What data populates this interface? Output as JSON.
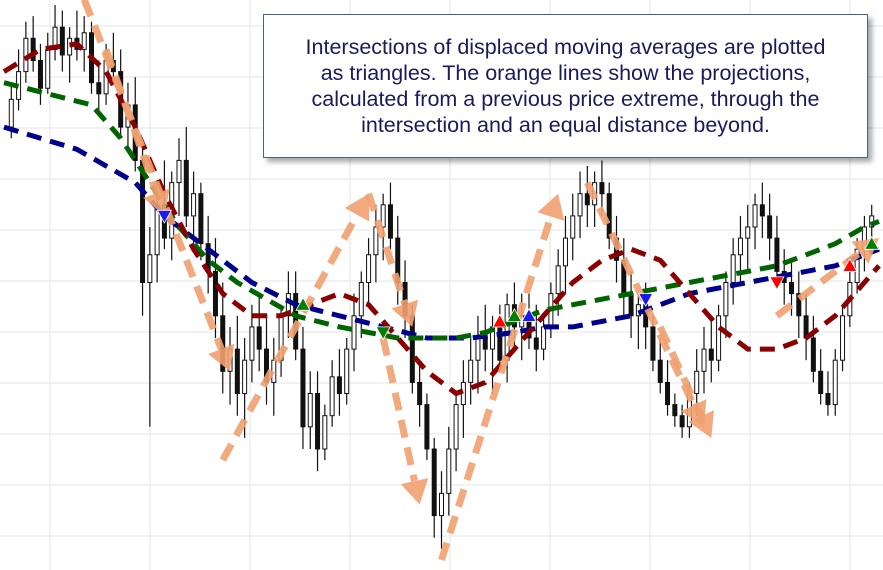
{
  "annotation": {
    "text": "Intersections of displaced moving averages are plotted\nas triangles. The orange lines show the projections,\ncalculated from a previous price extreme, through the\nintersection and an equal distance beyond."
  },
  "colors": {
    "background": "#ffffff",
    "grid": "#e6e6e6",
    "candle": "#111111",
    "ma_slow": "#00008b",
    "ma_medium": "#006400",
    "ma_fast": "#8b0000",
    "projection": "#f0a070",
    "triangle_up": "#ff0000",
    "triangle_down": "#1a1aee",
    "triangle_cross": "#008000"
  },
  "chart_data": {
    "type": "candlestick",
    "title": "",
    "xlabel": "",
    "ylabel": "",
    "grid": true,
    "legend": "none",
    "x_range": [
      0,
      120
    ],
    "y_range": [
      0,
      100
    ],
    "candles": [
      {
        "x": 1,
        "o": 78,
        "h": 86,
        "l": 76,
        "c": 83
      },
      {
        "x": 2,
        "o": 83,
        "h": 92,
        "l": 81,
        "c": 88
      },
      {
        "x": 3,
        "o": 88,
        "h": 97,
        "l": 86,
        "c": 94
      },
      {
        "x": 4,
        "o": 94,
        "h": 98,
        "l": 88,
        "c": 90
      },
      {
        "x": 5,
        "o": 90,
        "h": 93,
        "l": 82,
        "c": 85
      },
      {
        "x": 6,
        "o": 85,
        "h": 95,
        "l": 84,
        "c": 92
      },
      {
        "x": 7,
        "o": 92,
        "h": 100,
        "l": 90,
        "c": 96
      },
      {
        "x": 8,
        "o": 96,
        "h": 99,
        "l": 88,
        "c": 91
      },
      {
        "x": 9,
        "o": 91,
        "h": 96,
        "l": 86,
        "c": 94
      },
      {
        "x": 10,
        "o": 94,
        "h": 99,
        "l": 90,
        "c": 92
      },
      {
        "x": 11,
        "o": 92,
        "h": 98,
        "l": 88,
        "c": 95
      },
      {
        "x": 12,
        "o": 95,
        "h": 97,
        "l": 84,
        "c": 86
      },
      {
        "x": 13,
        "o": 86,
        "h": 90,
        "l": 80,
        "c": 84
      },
      {
        "x": 14,
        "o": 84,
        "h": 93,
        "l": 82,
        "c": 90
      },
      {
        "x": 15,
        "o": 90,
        "h": 95,
        "l": 86,
        "c": 88
      },
      {
        "x": 16,
        "o": 88,
        "h": 92,
        "l": 76,
        "c": 78
      },
      {
        "x": 17,
        "o": 78,
        "h": 86,
        "l": 74,
        "c": 82
      },
      {
        "x": 18,
        "o": 82,
        "h": 87,
        "l": 70,
        "c": 72
      },
      {
        "x": 19,
        "o": 72,
        "h": 76,
        "l": 44,
        "c": 50
      },
      {
        "x": 20,
        "o": 50,
        "h": 60,
        "l": 24,
        "c": 55
      },
      {
        "x": 21,
        "o": 55,
        "h": 68,
        "l": 50,
        "c": 64
      },
      {
        "x": 22,
        "o": 64,
        "h": 72,
        "l": 56,
        "c": 58
      },
      {
        "x": 23,
        "o": 58,
        "h": 70,
        "l": 54,
        "c": 68
      },
      {
        "x": 24,
        "o": 68,
        "h": 76,
        "l": 62,
        "c": 72
      },
      {
        "x": 25,
        "o": 72,
        "h": 78,
        "l": 60,
        "c": 62
      },
      {
        "x": 26,
        "o": 62,
        "h": 70,
        "l": 56,
        "c": 66
      },
      {
        "x": 27,
        "o": 66,
        "h": 68,
        "l": 54,
        "c": 57
      },
      {
        "x": 28,
        "o": 57,
        "h": 62,
        "l": 48,
        "c": 52
      },
      {
        "x": 29,
        "o": 52,
        "h": 58,
        "l": 40,
        "c": 44
      },
      {
        "x": 30,
        "o": 44,
        "h": 50,
        "l": 30,
        "c": 34
      },
      {
        "x": 31,
        "o": 34,
        "h": 42,
        "l": 28,
        "c": 38
      },
      {
        "x": 32,
        "o": 38,
        "h": 44,
        "l": 26,
        "c": 30
      },
      {
        "x": 33,
        "o": 30,
        "h": 40,
        "l": 22,
        "c": 36
      },
      {
        "x": 34,
        "o": 36,
        "h": 46,
        "l": 32,
        "c": 42
      },
      {
        "x": 35,
        "o": 42,
        "h": 48,
        "l": 34,
        "c": 38
      },
      {
        "x": 36,
        "o": 38,
        "h": 44,
        "l": 28,
        "c": 32
      },
      {
        "x": 37,
        "o": 32,
        "h": 40,
        "l": 26,
        "c": 36
      },
      {
        "x": 38,
        "o": 36,
        "h": 46,
        "l": 33,
        "c": 44
      },
      {
        "x": 39,
        "o": 44,
        "h": 52,
        "l": 40,
        "c": 48
      },
      {
        "x": 40,
        "o": 48,
        "h": 52,
        "l": 36,
        "c": 38
      },
      {
        "x": 41,
        "o": 38,
        "h": 42,
        "l": 20,
        "c": 24
      },
      {
        "x": 42,
        "o": 24,
        "h": 34,
        "l": 20,
        "c": 30
      },
      {
        "x": 43,
        "o": 30,
        "h": 34,
        "l": 16,
        "c": 20
      },
      {
        "x": 44,
        "o": 20,
        "h": 28,
        "l": 18,
        "c": 26
      },
      {
        "x": 45,
        "o": 26,
        "h": 36,
        "l": 24,
        "c": 33
      },
      {
        "x": 46,
        "o": 33,
        "h": 38,
        "l": 26,
        "c": 30
      },
      {
        "x": 47,
        "o": 30,
        "h": 40,
        "l": 28,
        "c": 38
      },
      {
        "x": 48,
        "o": 38,
        "h": 48,
        "l": 34,
        "c": 44
      },
      {
        "x": 49,
        "o": 44,
        "h": 52,
        "l": 40,
        "c": 50
      },
      {
        "x": 50,
        "o": 50,
        "h": 58,
        "l": 46,
        "c": 55
      },
      {
        "x": 51,
        "o": 55,
        "h": 64,
        "l": 50,
        "c": 60
      },
      {
        "x": 52,
        "o": 60,
        "h": 66,
        "l": 54,
        "c": 64
      },
      {
        "x": 53,
        "o": 64,
        "h": 68,
        "l": 56,
        "c": 58
      },
      {
        "x": 54,
        "o": 58,
        "h": 62,
        "l": 46,
        "c": 50
      },
      {
        "x": 55,
        "o": 50,
        "h": 54,
        "l": 40,
        "c": 44
      },
      {
        "x": 56,
        "o": 44,
        "h": 46,
        "l": 30,
        "c": 32
      },
      {
        "x": 57,
        "o": 32,
        "h": 36,
        "l": 24,
        "c": 28
      },
      {
        "x": 58,
        "o": 28,
        "h": 30,
        "l": 18,
        "c": 20
      },
      {
        "x": 59,
        "o": 20,
        "h": 22,
        "l": 4,
        "c": 8
      },
      {
        "x": 60,
        "o": 8,
        "h": 16,
        "l": 2,
        "c": 12
      },
      {
        "x": 61,
        "o": 12,
        "h": 24,
        "l": 8,
        "c": 20
      },
      {
        "x": 62,
        "o": 20,
        "h": 30,
        "l": 16,
        "c": 28
      },
      {
        "x": 63,
        "o": 28,
        "h": 36,
        "l": 22,
        "c": 32
      },
      {
        "x": 64,
        "o": 32,
        "h": 40,
        "l": 28,
        "c": 36
      },
      {
        "x": 65,
        "o": 36,
        "h": 44,
        "l": 30,
        "c": 40
      },
      {
        "x": 66,
        "o": 40,
        "h": 46,
        "l": 34,
        "c": 38
      },
      {
        "x": 67,
        "o": 38,
        "h": 44,
        "l": 30,
        "c": 42
      },
      {
        "x": 68,
        "o": 42,
        "h": 46,
        "l": 34,
        "c": 36
      },
      {
        "x": 69,
        "o": 36,
        "h": 48,
        "l": 32,
        "c": 46
      },
      {
        "x": 70,
        "o": 46,
        "h": 50,
        "l": 38,
        "c": 42
      },
      {
        "x": 71,
        "o": 42,
        "h": 48,
        "l": 36,
        "c": 44
      },
      {
        "x": 72,
        "o": 44,
        "h": 48,
        "l": 38,
        "c": 40
      },
      {
        "x": 73,
        "o": 40,
        "h": 46,
        "l": 34,
        "c": 38
      },
      {
        "x": 74,
        "o": 38,
        "h": 44,
        "l": 36,
        "c": 42
      },
      {
        "x": 75,
        "o": 42,
        "h": 50,
        "l": 40,
        "c": 48
      },
      {
        "x": 76,
        "o": 48,
        "h": 56,
        "l": 44,
        "c": 53
      },
      {
        "x": 77,
        "o": 53,
        "h": 62,
        "l": 48,
        "c": 58
      },
      {
        "x": 78,
        "o": 58,
        "h": 66,
        "l": 54,
        "c": 62
      },
      {
        "x": 79,
        "o": 62,
        "h": 70,
        "l": 58,
        "c": 66
      },
      {
        "x": 80,
        "o": 66,
        "h": 71,
        "l": 60,
        "c": 64
      },
      {
        "x": 81,
        "o": 64,
        "h": 70,
        "l": 60,
        "c": 68
      },
      {
        "x": 82,
        "o": 68,
        "h": 72,
        "l": 62,
        "c": 66
      },
      {
        "x": 83,
        "o": 66,
        "h": 68,
        "l": 56,
        "c": 58
      },
      {
        "x": 84,
        "o": 58,
        "h": 62,
        "l": 50,
        "c": 54
      },
      {
        "x": 85,
        "o": 54,
        "h": 58,
        "l": 44,
        "c": 48
      },
      {
        "x": 86,
        "o": 48,
        "h": 52,
        "l": 40,
        "c": 44
      },
      {
        "x": 87,
        "o": 44,
        "h": 48,
        "l": 38,
        "c": 46
      },
      {
        "x": 88,
        "o": 46,
        "h": 50,
        "l": 38,
        "c": 42
      },
      {
        "x": 89,
        "o": 42,
        "h": 44,
        "l": 34,
        "c": 36
      },
      {
        "x": 90,
        "o": 36,
        "h": 40,
        "l": 30,
        "c": 32
      },
      {
        "x": 91,
        "o": 32,
        "h": 36,
        "l": 26,
        "c": 28
      },
      {
        "x": 92,
        "o": 28,
        "h": 30,
        "l": 24,
        "c": 26
      },
      {
        "x": 93,
        "o": 26,
        "h": 28,
        "l": 22,
        "c": 24
      },
      {
        "x": 94,
        "o": 24,
        "h": 32,
        "l": 22,
        "c": 30
      },
      {
        "x": 95,
        "o": 30,
        "h": 38,
        "l": 26,
        "c": 34
      },
      {
        "x": 96,
        "o": 34,
        "h": 42,
        "l": 30,
        "c": 38
      },
      {
        "x": 97,
        "o": 38,
        "h": 44,
        "l": 32,
        "c": 36
      },
      {
        "x": 98,
        "o": 36,
        "h": 46,
        "l": 34,
        "c": 44
      },
      {
        "x": 99,
        "o": 44,
        "h": 52,
        "l": 40,
        "c": 50
      },
      {
        "x": 100,
        "o": 50,
        "h": 58,
        "l": 46,
        "c": 55
      },
      {
        "x": 101,
        "o": 55,
        "h": 62,
        "l": 50,
        "c": 58
      },
      {
        "x": 102,
        "o": 58,
        "h": 64,
        "l": 52,
        "c": 60
      },
      {
        "x": 103,
        "o": 60,
        "h": 66,
        "l": 56,
        "c": 64
      },
      {
        "x": 104,
        "o": 64,
        "h": 68,
        "l": 58,
        "c": 62
      },
      {
        "x": 105,
        "o": 62,
        "h": 66,
        "l": 54,
        "c": 58
      },
      {
        "x": 106,
        "o": 58,
        "h": 62,
        "l": 50,
        "c": 52
      },
      {
        "x": 107,
        "o": 52,
        "h": 56,
        "l": 46,
        "c": 50
      },
      {
        "x": 108,
        "o": 50,
        "h": 54,
        "l": 44,
        "c": 48
      },
      {
        "x": 109,
        "o": 48,
        "h": 52,
        "l": 40,
        "c": 44
      },
      {
        "x": 110,
        "o": 44,
        "h": 48,
        "l": 36,
        "c": 40
      },
      {
        "x": 111,
        "o": 40,
        "h": 44,
        "l": 32,
        "c": 34
      },
      {
        "x": 112,
        "o": 34,
        "h": 38,
        "l": 28,
        "c": 30
      },
      {
        "x": 113,
        "o": 30,
        "h": 34,
        "l": 26,
        "c": 28
      },
      {
        "x": 114,
        "o": 28,
        "h": 38,
        "l": 26,
        "c": 36
      },
      {
        "x": 115,
        "o": 36,
        "h": 46,
        "l": 34,
        "c": 44
      },
      {
        "x": 116,
        "o": 44,
        "h": 52,
        "l": 42,
        "c": 50
      },
      {
        "x": 117,
        "o": 50,
        "h": 58,
        "l": 48,
        "c": 56
      },
      {
        "x": 118,
        "o": 56,
        "h": 62,
        "l": 52,
        "c": 60
      },
      {
        "x": 119,
        "o": 60,
        "h": 64,
        "l": 56,
        "c": 62
      }
    ],
    "series": [
      {
        "key": "slow",
        "color": "#00008b",
        "values": [
          [
            0,
            78
          ],
          [
            10,
            74
          ],
          [
            18,
            68
          ],
          [
            22,
            62
          ],
          [
            28,
            56
          ],
          [
            34,
            50
          ],
          [
            40,
            46
          ],
          [
            46,
            44
          ],
          [
            52,
            42
          ],
          [
            58,
            40
          ],
          [
            64,
            40
          ],
          [
            70,
            41
          ],
          [
            74,
            42
          ],
          [
            78,
            42
          ],
          [
            82,
            43
          ],
          [
            86,
            44
          ],
          [
            90,
            46
          ],
          [
            94,
            48
          ],
          [
            98,
            49
          ],
          [
            102,
            50
          ],
          [
            106,
            51
          ],
          [
            110,
            52
          ],
          [
            114,
            53
          ],
          [
            118,
            55
          ],
          [
            120,
            56
          ]
        ]
      },
      {
        "key": "medium",
        "color": "#006400",
        "values": [
          [
            0,
            86
          ],
          [
            6,
            84
          ],
          [
            12,
            82
          ],
          [
            16,
            76
          ],
          [
            20,
            68
          ],
          [
            24,
            60
          ],
          [
            28,
            54
          ],
          [
            32,
            50
          ],
          [
            36,
            47
          ],
          [
            40,
            44
          ],
          [
            46,
            42
          ],
          [
            50,
            41
          ],
          [
            54,
            40
          ],
          [
            58,
            40
          ],
          [
            62,
            40
          ],
          [
            66,
            41
          ],
          [
            70,
            43
          ],
          [
            74,
            45
          ],
          [
            78,
            46
          ],
          [
            82,
            47
          ],
          [
            86,
            48
          ],
          [
            90,
            49
          ],
          [
            94,
            50
          ],
          [
            98,
            51
          ],
          [
            102,
            52
          ],
          [
            106,
            53
          ],
          [
            110,
            55
          ],
          [
            114,
            57
          ],
          [
            118,
            60
          ],
          [
            120,
            61
          ]
        ]
      },
      {
        "key": "fast",
        "color": "#8b0000",
        "values": [
          [
            0,
            88
          ],
          [
            5,
            92
          ],
          [
            10,
            93
          ],
          [
            14,
            88
          ],
          [
            18,
            78
          ],
          [
            22,
            66
          ],
          [
            26,
            56
          ],
          [
            30,
            48
          ],
          [
            34,
            44
          ],
          [
            38,
            44
          ],
          [
            42,
            46
          ],
          [
            46,
            48
          ],
          [
            50,
            46
          ],
          [
            54,
            40
          ],
          [
            58,
            34
          ],
          [
            62,
            30
          ],
          [
            66,
            32
          ],
          [
            70,
            38
          ],
          [
            74,
            44
          ],
          [
            78,
            50
          ],
          [
            82,
            54
          ],
          [
            86,
            56
          ],
          [
            90,
            54
          ],
          [
            94,
            48
          ],
          [
            98,
            42
          ],
          [
            102,
            38
          ],
          [
            106,
            38
          ],
          [
            110,
            40
          ],
          [
            114,
            44
          ],
          [
            118,
            50
          ],
          [
            120,
            53
          ]
        ]
      }
    ],
    "triangles": [
      {
        "x": 22,
        "y": 62,
        "dir": "down",
        "color": "#1a1aee"
      },
      {
        "x": 41,
        "y": 46,
        "dir": "up",
        "color": "#008000"
      },
      {
        "x": 52,
        "y": 41,
        "dir": "down",
        "color": "#008000"
      },
      {
        "x": 68,
        "y": 43,
        "dir": "up",
        "color": "#ff0000"
      },
      {
        "x": 70,
        "y": 44,
        "dir": "up",
        "color": "#008000"
      },
      {
        "x": 72,
        "y": 44,
        "dir": "up",
        "color": "#1a1aee"
      },
      {
        "x": 88,
        "y": 47,
        "dir": "down",
        "color": "#1a1aee"
      },
      {
        "x": 106,
        "y": 50,
        "dir": "down",
        "color": "#ff0000"
      },
      {
        "x": 116,
        "y": 53,
        "dir": "up",
        "color": "#ff0000"
      },
      {
        "x": 119,
        "y": 57,
        "dir": "up",
        "color": "#008000"
      }
    ],
    "projections": [
      {
        "x1": 11,
        "y1": 101,
        "x2": 31,
        "y2": 34
      },
      {
        "x1": 14,
        "y1": 92,
        "x2": 22,
        "y2": 62
      },
      {
        "x1": 30,
        "y1": 18,
        "x2": 50,
        "y2": 66
      },
      {
        "x1": 50,
        "y1": 66,
        "x2": 56,
        "y2": 42
      },
      {
        "x1": 52,
        "y1": 40,
        "x2": 57,
        "y2": 10
      },
      {
        "x1": 60,
        "y1": 0,
        "x2": 76,
        "y2": 66
      },
      {
        "x1": 80,
        "y1": 68,
        "x2": 96,
        "y2": 24
      },
      {
        "x1": 90,
        "y1": 42,
        "x2": 97,
        "y2": 22
      },
      {
        "x1": 106,
        "y1": 44,
        "x2": 120,
        "y2": 58
      }
    ]
  }
}
